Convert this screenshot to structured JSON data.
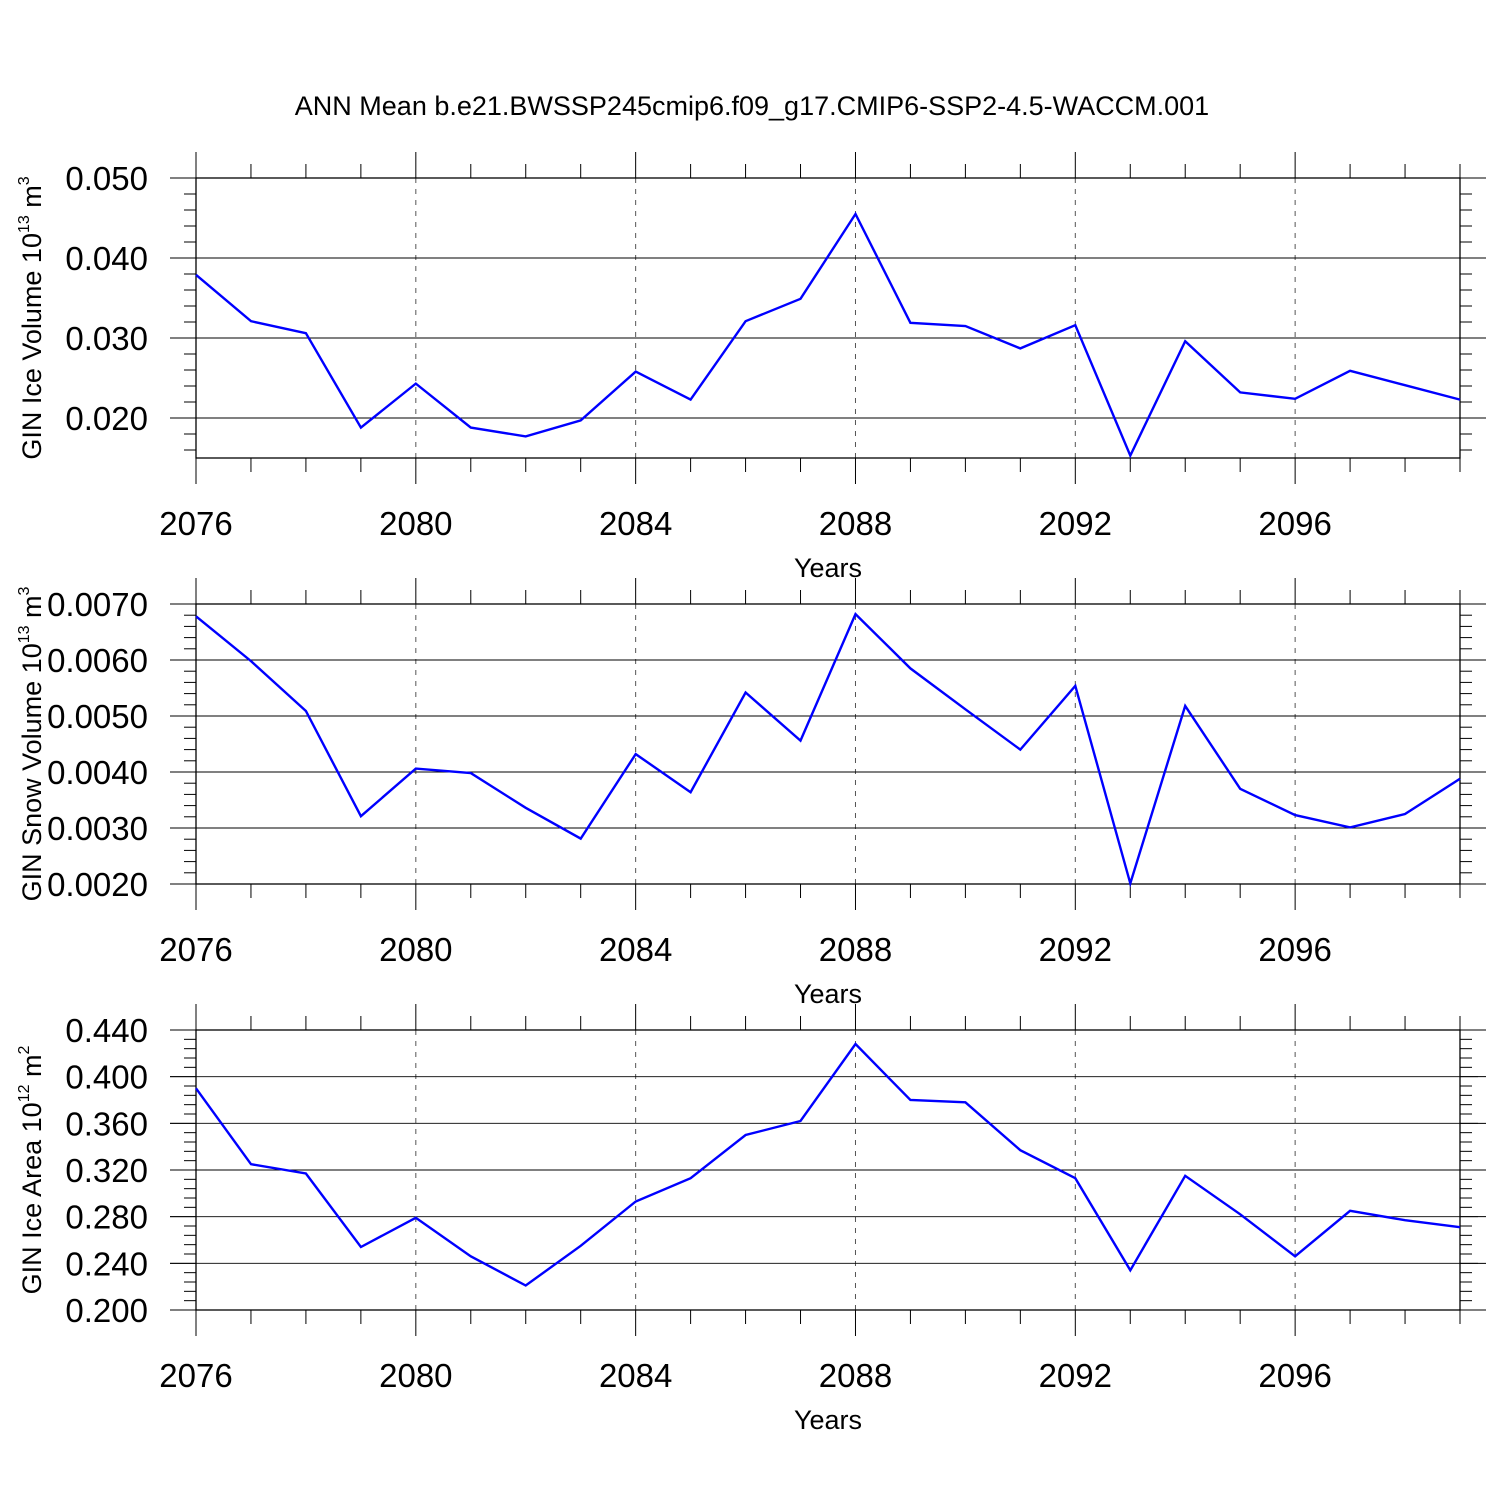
{
  "title": "ANN Mean b.e21.BWSSP245cmip6.f09_g17.CMIP6-SSP2-4.5-WACCM.001",
  "chart_data": [
    {
      "type": "line",
      "title": "",
      "xlabel": "Years",
      "ylabel": {
        "prefix": "GIN Ice Volume 10",
        "exp": "13",
        "mid": " m",
        "unit_exp": "3"
      },
      "xlim": [
        2076,
        2099
      ],
      "ylim": [
        0.015,
        0.05
      ],
      "xticks": [
        "2076",
        "2080",
        "2084",
        "2088",
        "2092",
        "2096"
      ],
      "yticks": [
        "0.020",
        "0.030",
        "0.040",
        "0.050"
      ],
      "series": [
        {
          "name": "GIN Ice Volume",
          "color": "#0000ff",
          "x": [
            2076,
            2077,
            2078,
            2079,
            2080,
            2081,
            2082,
            2083,
            2084,
            2085,
            2086,
            2087,
            2088,
            2089,
            2090,
            2091,
            2092,
            2093,
            2094,
            2095,
            2096,
            2097,
            2098,
            2099
          ],
          "values": [
            0.0379,
            0.0321,
            0.0306,
            0.0188,
            0.0243,
            0.0188,
            0.0177,
            0.0197,
            0.0258,
            0.0223,
            0.0321,
            0.0349,
            0.0455,
            0.0319,
            0.0315,
            0.0287,
            0.0316,
            0.0153,
            0.0296,
            0.0232,
            0.0224,
            0.0259,
            0.0241,
            0.0223
          ]
        }
      ]
    },
    {
      "type": "line",
      "title": "",
      "xlabel": "Years",
      "ylabel": {
        "prefix": "GIN Snow Volume 10",
        "exp": "13",
        "mid": " m",
        "unit_exp": "3"
      },
      "xlim": [
        2076,
        2099
      ],
      "ylim": [
        0.002,
        0.007
      ],
      "xticks": [
        "2076",
        "2080",
        "2084",
        "2088",
        "2092",
        "2096"
      ],
      "yticks": [
        "0.0020",
        "0.0030",
        "0.0040",
        "0.0050",
        "0.0060",
        "0.0070"
      ],
      "series": [
        {
          "name": "GIN Snow Volume",
          "color": "#0000ff",
          "x": [
            2076,
            2077,
            2078,
            2079,
            2080,
            2081,
            2082,
            2083,
            2084,
            2085,
            2086,
            2087,
            2088,
            2089,
            2090,
            2091,
            2092,
            2093,
            2094,
            2095,
            2096,
            2097,
            2098,
            2099
          ],
          "values": [
            0.00678,
            0.00598,
            0.00509,
            0.00321,
            0.00406,
            0.00398,
            0.00336,
            0.00281,
            0.00432,
            0.00364,
            0.00542,
            0.00456,
            0.00682,
            0.00585,
            0.00512,
            0.0044,
            0.00554,
            0.00201,
            0.00518,
            0.0037,
            0.00323,
            0.00301,
            0.00325,
            0.00388
          ]
        }
      ]
    },
    {
      "type": "line",
      "title": "",
      "xlabel": "Years",
      "ylabel": {
        "prefix": "GIN Ice Area 10",
        "exp": "12",
        "mid": " m",
        "unit_exp": "2"
      },
      "xlim": [
        2076,
        2099
      ],
      "ylim": [
        0.2,
        0.44
      ],
      "xticks": [
        "2076",
        "2080",
        "2084",
        "2088",
        "2092",
        "2096"
      ],
      "yticks": [
        "0.200",
        "0.240",
        "0.280",
        "0.320",
        "0.360",
        "0.400",
        "0.440"
      ],
      "series": [
        {
          "name": "GIN Ice Area",
          "color": "#0000ff",
          "x": [
            2076,
            2077,
            2078,
            2079,
            2080,
            2081,
            2082,
            2083,
            2084,
            2085,
            2086,
            2087,
            2088,
            2089,
            2090,
            2091,
            2092,
            2093,
            2094,
            2095,
            2096,
            2097,
            2098,
            2099
          ],
          "values": [
            0.39,
            0.325,
            0.317,
            0.254,
            0.279,
            0.246,
            0.221,
            0.255,
            0.293,
            0.313,
            0.35,
            0.362,
            0.428,
            0.38,
            0.378,
            0.337,
            0.313,
            0.234,
            0.315,
            0.282,
            0.246,
            0.285,
            0.277,
            0.271
          ]
        }
      ]
    }
  ]
}
